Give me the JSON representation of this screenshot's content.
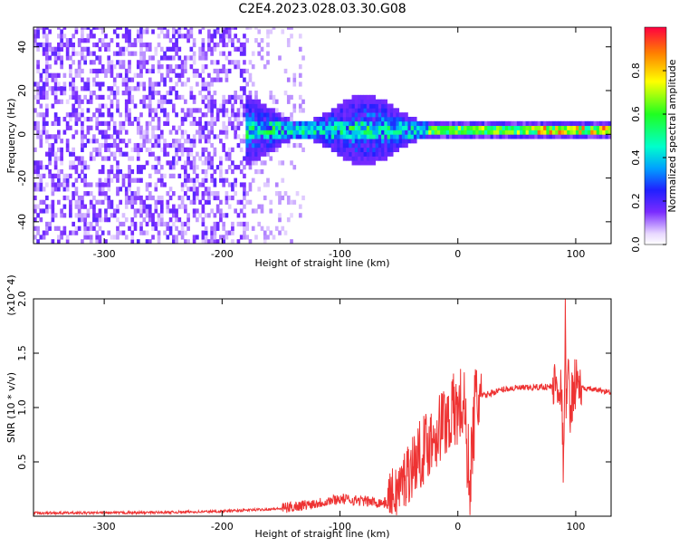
{
  "page_title": "C2E4.2023.028.03.30.G08",
  "chart_data": [
    {
      "type": "heatmap",
      "xlabel": "Height of straight line (km)",
      "ylabel": "Frequency (Hz)",
      "xlim": [
        -360,
        130
      ],
      "ylim": [
        -50,
        49
      ],
      "x_ticks": [
        -300,
        -200,
        -100,
        0,
        100
      ],
      "y_ticks": [
        -40,
        -20,
        0,
        20,
        40
      ],
      "colorbar": {
        "label": "Normalized spectral amplitude",
        "range": [
          0,
          1
        ],
        "ticks": [
          0.0,
          0.2,
          0.4,
          0.6,
          0.8
        ]
      },
      "description_bands": [
        {
          "x_start": -360,
          "x_end": -180,
          "pattern": "broadband noise across all frequencies"
        },
        {
          "x_start": -180,
          "x_end": -25,
          "pattern": "concentrated band near 0 Hz, width about ±15 Hz"
        },
        {
          "x_start": -25,
          "x_end": 130,
          "pattern": "narrow strong band centered near 1 Hz"
        }
      ]
    },
    {
      "type": "line",
      "xlabel": "Height of straight line (km)",
      "ylabel": "SNR (10 * v/v)",
      "y_multiplier": "(x10^4)",
      "xlim": [
        -360,
        130
      ],
      "ylim": [
        0,
        20000
      ],
      "x_ticks": [
        -300,
        -200,
        -100,
        0,
        100
      ],
      "y_ticks": [
        0.5,
        1.0,
        1.5,
        2.0
      ],
      "series": [
        {
          "color": "#ee3333",
          "x": [
            -360,
            -300,
            -250,
            -200,
            -150,
            -120,
            -100,
            -80,
            -60,
            -50,
            -40,
            -30,
            -20,
            -10,
            0,
            5,
            10,
            15,
            20,
            30,
            40,
            50,
            60,
            70,
            80,
            85,
            88,
            90,
            91,
            92,
            93,
            95,
            100,
            105,
            110,
            120,
            130
          ],
          "y": [
            300,
            300,
            350,
            450,
            700,
            1200,
            1600,
            1400,
            1200,
            2500,
            4500,
            6000,
            7500,
            9000,
            9800,
            10400,
            3000,
            10600,
            11000,
            11400,
            11700,
            11800,
            11800,
            11900,
            11900,
            12500,
            11000,
            3000,
            20000,
            8500,
            14000,
            10000,
            12500,
            11800,
            11700,
            11600,
            11400
          ]
        }
      ]
    }
  ]
}
